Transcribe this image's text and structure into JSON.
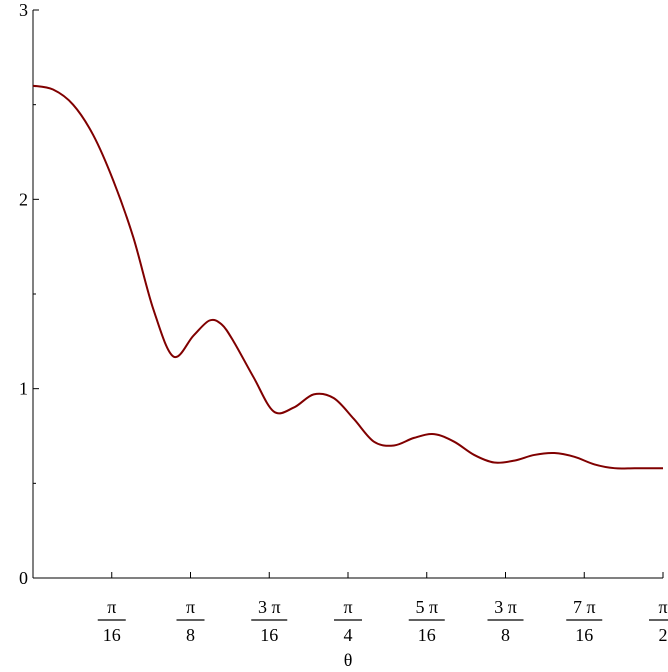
{
  "chart_data": {
    "type": "line",
    "title": "",
    "xlabel": "θ",
    "ylabel": "",
    "xlim": [
      0,
      1.5708
    ],
    "ylim": [
      0,
      3
    ],
    "grid": false,
    "legend": "none",
    "curve_color": "#800000",
    "y_ticks": [
      {
        "value": 0,
        "label": "0"
      },
      {
        "value": 1,
        "label": "1"
      },
      {
        "value": 2,
        "label": "2"
      },
      {
        "value": 3,
        "label": "3"
      }
    ],
    "y_minor_ticks": [
      0.5,
      1.5,
      2.5
    ],
    "x_ticks": [
      {
        "value": 0.19635,
        "num": "π",
        "den": "16"
      },
      {
        "value": 0.3927,
        "num": "π",
        "den": "8"
      },
      {
        "value": 0.58905,
        "num": "3 π",
        "den": "16"
      },
      {
        "value": 0.7854,
        "num": "π",
        "den": "4"
      },
      {
        "value": 0.98175,
        "num": "5 π",
        "den": "16"
      },
      {
        "value": 1.1781,
        "num": "3 π",
        "den": "8"
      },
      {
        "value": 1.37445,
        "num": "7 π",
        "den": "16"
      },
      {
        "value": 1.5708,
        "num": "π",
        "den": "2"
      }
    ],
    "series": [
      {
        "x": [
          0,
          0.05,
          0.1,
          0.15,
          0.2,
          0.25,
          0.3,
          0.35,
          0.4,
          0.44,
          0.47,
          0.5,
          0.55,
          0.6,
          0.65,
          0.7,
          0.75,
          0.8,
          0.85,
          0.9,
          0.95,
          1.0,
          1.05,
          1.1,
          1.15,
          1.2,
          1.25,
          1.3,
          1.35,
          1.4,
          1.45,
          1.5,
          1.55,
          1.5708
        ],
        "y": [
          2.6,
          2.58,
          2.5,
          2.34,
          2.1,
          1.8,
          1.42,
          1.17,
          1.28,
          1.36,
          1.34,
          1.25,
          1.06,
          0.88,
          0.9,
          0.97,
          0.95,
          0.84,
          0.72,
          0.7,
          0.74,
          0.76,
          0.72,
          0.65,
          0.61,
          0.62,
          0.65,
          0.66,
          0.64,
          0.6,
          0.58,
          0.58,
          0.58,
          0.58
        ]
      }
    ]
  }
}
